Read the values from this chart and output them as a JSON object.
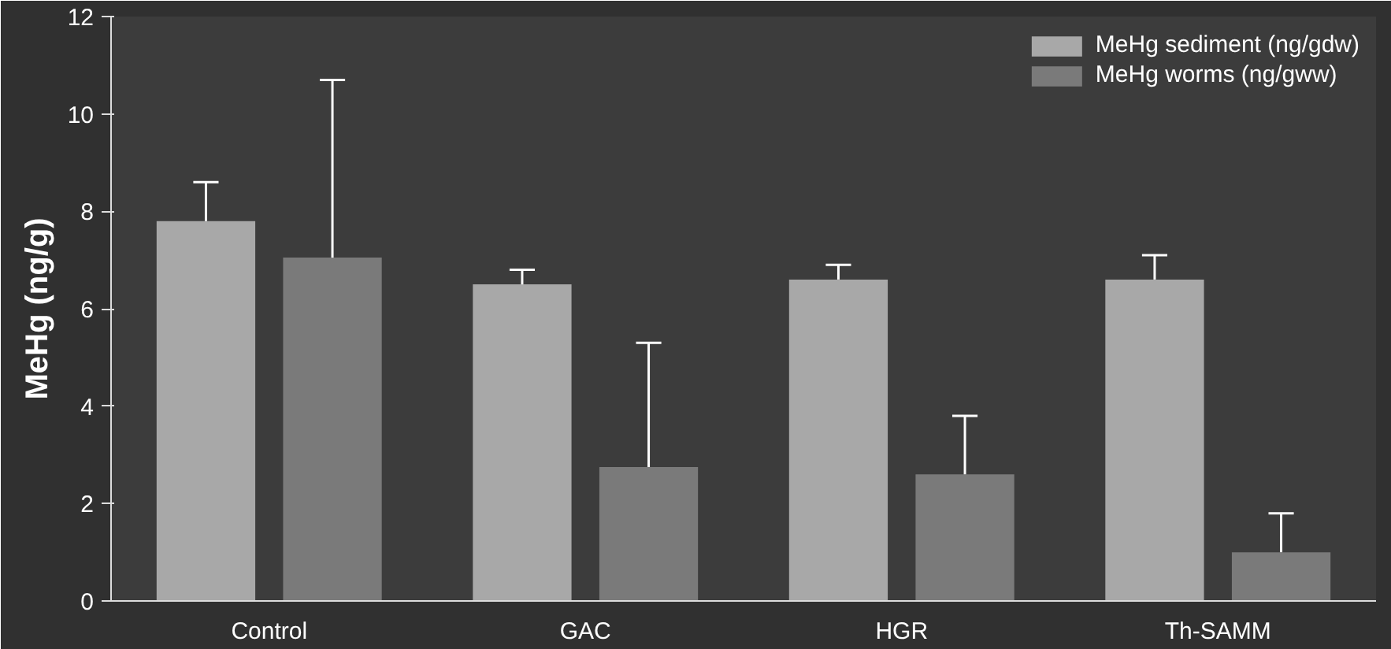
{
  "chart_data": {
    "type": "bar",
    "ylabel": "MeHg (ng/g)",
    "categories": [
      "Control",
      "GAC",
      "HGR",
      "Th-SAMM"
    ],
    "series": [
      {
        "name": "MeHg sediment (ng/gdw)",
        "color": "#a8a8a8",
        "values": [
          7.8,
          6.5,
          6.6,
          6.6
        ],
        "errors": [
          [
            7.8,
            8.6
          ],
          [
            6.5,
            6.8
          ],
          [
            6.6,
            6.9
          ],
          [
            6.6,
            7.1
          ]
        ]
      },
      {
        "name": "MeHg worms (ng/gww)",
        "color": "#7a7a7a",
        "values": [
          7.05,
          2.75,
          2.6,
          1.0
        ],
        "errors": [
          [
            7.05,
            10.7
          ],
          [
            2.75,
            5.3
          ],
          [
            2.6,
            3.8
          ],
          [
            1.0,
            1.8
          ]
        ]
      }
    ],
    "ylim": [
      0,
      12
    ],
    "yticks": [
      0,
      2,
      4,
      6,
      8,
      10,
      12
    ],
    "grid": false,
    "legend": "top right"
  }
}
